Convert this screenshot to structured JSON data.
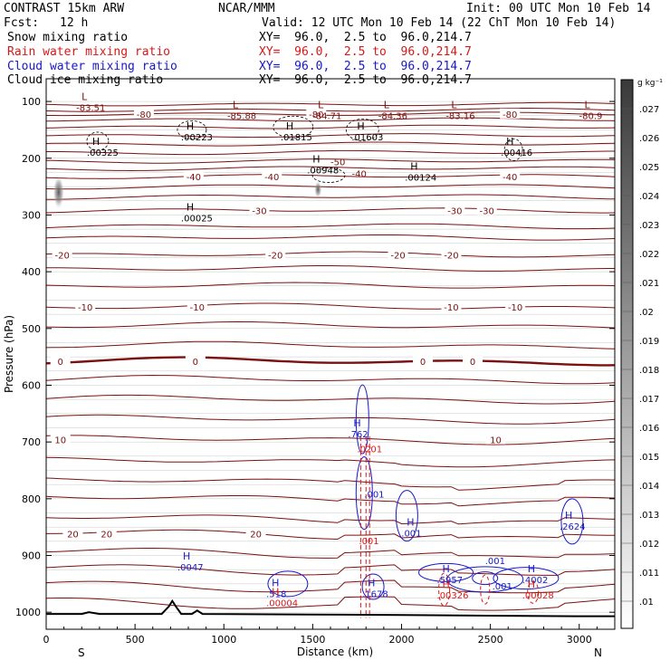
{
  "header": {
    "model": "CONTRAST 15km ARW",
    "org": "NCAR/MMM",
    "init": "Init: 00 UTC Mon 10 Feb 14",
    "fcst_label": "Fcst:",
    "fcst_value": "12 h",
    "valid": "Valid: 12 UTC Mon 10 Feb 14 (22 ChT Mon 10 Feb 14)",
    "fields": [
      {
        "name": "Snow mixing ratio",
        "xy": "XY=  96.0,  2.5 to  96.0,214.7",
        "color": "#000000"
      },
      {
        "name": "Rain water mixing ratio",
        "xy": "XY=  96.0,  2.5 to  96.0,214.7",
        "color": "#d81818"
      },
      {
        "name": "Cloud water mixing ratio",
        "xy": "XY=  96.0,  2.5 to  96.0,214.7",
        "color": "#1818c8"
      },
      {
        "name": "Cloud ice mixing ratio",
        "xy": "XY=  96.0,  2.5 to  96.0,214.7",
        "color": "#000000"
      }
    ]
  },
  "chart_data": {
    "type": "contour",
    "xlabel": "Distance (km)",
    "ylabel": "Pressure (hPa)",
    "xlim": [
      0,
      3200
    ],
    "ylim": [
      1030,
      60
    ],
    "x_ticks": [
      0,
      500,
      1000,
      1500,
      2000,
      2500,
      3000
    ],
    "y_ticks": [
      100,
      200,
      300,
      400,
      500,
      600,
      700,
      800,
      900,
      1000
    ],
    "direction_labels": {
      "left": "S",
      "right": "N"
    },
    "colorbar": {
      "unit": "g kg⁻¹",
      "ticks": [
        ".01",
        ".011",
        ".012",
        ".013",
        ".014",
        ".015",
        ".016",
        ".017",
        ".018",
        ".019",
        ".02",
        ".021",
        ".022",
        ".023",
        ".024",
        ".025",
        ".026",
        ".027"
      ]
    },
    "temperature_contours": [
      {
        "label": "-80",
        "p": 122,
        "labels_at": [
          550,
          1520,
          2610
        ]
      },
      {
        "label": "-40",
        "p": 232,
        "labels_at": [
          830,
          1270,
          2610
        ]
      },
      {
        "label": "-30",
        "p": 292,
        "labels_at": [
          1200,
          2300,
          2480
        ]
      },
      {
        "label": "-20",
        "p": 370,
        "labels_at": [
          90,
          1290,
          1980,
          2280
        ]
      },
      {
        "label": "-10",
        "p": 462,
        "labels_at": [
          220,
          850,
          2280,
          2640
        ]
      },
      {
        "label": "0",
        "p": 558,
        "labels_at": [
          80,
          840,
          2120,
          2400
        ]
      },
      {
        "label": "10",
        "p": 696,
        "labels_at": [
          80,
          2530
        ]
      },
      {
        "label": "20",
        "p": 862,
        "labels_at": [
          150,
          340,
          1180
        ]
      }
    ],
    "extrema": [
      {
        "type": "L",
        "value": "-83.51",
        "x": 230,
        "p": 110,
        "color": "#7a1010"
      },
      {
        "type": "L",
        "value": "-85.88",
        "x": 1080,
        "p": 125,
        "color": "#7a1010"
      },
      {
        "type": "L",
        "value": "-84.71",
        "x": 1560,
        "p": 125,
        "color": "#7a1010"
      },
      {
        "type": "L",
        "value": "-84.36",
        "x": 1930,
        "p": 125,
        "color": "#7a1010"
      },
      {
        "type": "L",
        "value": "-83.16",
        "x": 2310,
        "p": 125,
        "color": "#7a1010"
      },
      {
        "type": "L",
        "value": "-80.9",
        "x": 3060,
        "p": 125,
        "color": "#7a1010"
      },
      {
        "type": "H",
        "value": ".00223",
        "x": 820,
        "p": 162,
        "color": "#000000"
      },
      {
        "type": "H",
        "value": ".01815",
        "x": 1380,
        "p": 162,
        "color": "#000000"
      },
      {
        "type": "H",
        "value": ".01603",
        "x": 1780,
        "p": 162,
        "color": "#000000"
      },
      {
        "type": "H",
        "value": ".00325",
        "x": 290,
        "p": 189,
        "color": "#000000"
      },
      {
        "type": "H",
        "value": ".00416",
        "x": 2620,
        "p": 189,
        "color": "#000000"
      },
      {
        "type": "H",
        "value": ".00948",
        "x": 1530,
        "p": 220,
        "color": "#000000"
      },
      {
        "type": "H",
        "value": ".00124",
        "x": 2080,
        "p": 233,
        "color": "#000000"
      },
      {
        "type": "H",
        "value": ".00025",
        "x": 820,
        "p": 305,
        "color": "#000000"
      },
      {
        "type": "H",
        "value": ".762",
        "x": 1760,
        "p": 685,
        "color": "#1818c8"
      },
      {
        "type": "H",
        "value": ".001",
        "x": 2060,
        "p": 860,
        "color": "#1818c8"
      },
      {
        "type": "H",
        "value": ".2624",
        "x": 2950,
        "p": 848,
        "color": "#1818c8"
      },
      {
        "type": "H",
        "value": ".0047",
        "x": 800,
        "p": 920,
        "color": "#1818c8"
      },
      {
        "type": "H",
        "value": ".518",
        "x": 1300,
        "p": 967,
        "color": "#1818c8"
      },
      {
        "type": "H",
        "value": ".00004",
        "x": 1300,
        "p": 983,
        "color": "#d81818"
      },
      {
        "type": "H",
        "value": ".1678",
        "x": 1840,
        "p": 967,
        "color": "#1818c8"
      },
      {
        "type": "H",
        "value": ".5957",
        "x": 2260,
        "p": 942,
        "color": "#1818c8"
      },
      {
        "type": "H",
        "value": ".00326",
        "x": 2260,
        "p": 969,
        "color": "#d81818"
      },
      {
        "type": "H",
        "value": ".4002",
        "x": 2740,
        "p": 942,
        "color": "#1818c8"
      },
      {
        "type": "H",
        "value": ".00028",
        "x": 2740,
        "p": 969,
        "color": "#d81818"
      }
    ],
    "contour_labels": [
      {
        "text": ".001",
        "x": 2470,
        "p": 915,
        "color": "#1818c8"
      },
      {
        "text": ".001",
        "x": 2510,
        "p": 960,
        "color": "#1818c8"
      },
      {
        "text": ".02",
        "x": 1750,
        "p": 718,
        "color": "#d81818"
      },
      {
        "text": ".01",
        "x": 1810,
        "p": 718,
        "color": "#d81818"
      },
      {
        "text": ".001",
        "x": 1790,
        "p": 798,
        "color": "#1818c8"
      },
      {
        "text": ".001",
        "x": 1760,
        "p": 880,
        "color": "#d81818"
      },
      {
        "text": "-50",
        "x": 1600,
        "p": 212,
        "color": "#7a1010"
      },
      {
        "text": "-40",
        "x": 1720,
        "p": 233,
        "color": "#7a1010"
      }
    ],
    "terrain": {
      "x": [
        0,
        200,
        240,
        300,
        650,
        690,
        710,
        730,
        760,
        820,
        850,
        880,
        1500,
        2000,
        2500,
        3000,
        3200
      ],
      "p": [
        1003,
        1003,
        1000,
        1003,
        1003,
        990,
        980,
        990,
        1003,
        1003,
        997,
        1003,
        1004,
        1005,
        1006,
        1007,
        1007
      ]
    }
  }
}
